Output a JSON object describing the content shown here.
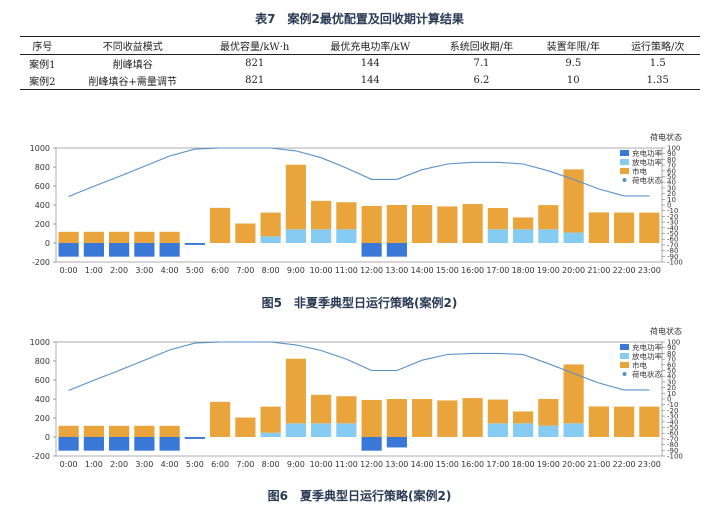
{
  "table": {
    "title": "表7　案例2最优配置及回收期计算结果",
    "headers": [
      "序号",
      "不同收益模式",
      "最优容量/kW·h",
      "最优充电功率/kW",
      "系统回收期/年",
      "装置年限/年",
      "运行策略/次"
    ],
    "rows": [
      [
        "案例1",
        "削峰填谷",
        "821",
        "144",
        "7.1",
        "9.5",
        "1.5"
      ],
      [
        "案例2",
        "削峰填谷+需量调节",
        "821",
        "144",
        "6.2",
        "10",
        "1.35"
      ]
    ]
  },
  "colors": {
    "charge": "#3a78d8",
    "discharge": "#86ccf2",
    "grid": "#eaa43c",
    "soc": "#5a90c8"
  },
  "chart_data": [
    {
      "type": "bar",
      "caption": "图5　非夏季典型日运行策略(案例2)",
      "categories": [
        "0:00",
        "1:00",
        "2:00",
        "3:00",
        "4:00",
        "5:00",
        "6:00",
        "7:00",
        "8:00",
        "9:00",
        "10:00",
        "11:00",
        "12:00",
        "13:00",
        "14:00",
        "15:00",
        "16:00",
        "17:00",
        "18:00",
        "19:00",
        "20:00",
        "21:00",
        "22:00",
        "23:00"
      ],
      "ylim": [
        -200,
        1000
      ],
      "yticks": [
        "-200",
        "0",
        "200",
        "400",
        "600",
        "800",
        "1000"
      ],
      "y2label": "荷电状态",
      "y2lim": [
        -100,
        100
      ],
      "y2ticks": [
        "-100",
        "-90",
        "-80",
        "-70",
        "-60",
        "-50",
        "-40",
        "-30",
        "-20",
        "-10",
        "0",
        "10",
        "20",
        "30",
        "40",
        "50",
        "60",
        "70",
        "80",
        "90",
        "100"
      ],
      "series": [
        {
          "name": "充电功率",
          "kind": "bar",
          "color": "#3a78d8",
          "values": [
            -144,
            -144,
            -144,
            -144,
            -144,
            -20,
            0,
            0,
            0,
            0,
            0,
            0,
            -144,
            -144,
            0,
            0,
            0,
            0,
            0,
            0,
            0,
            0,
            0,
            0
          ]
        },
        {
          "name": "放电功率",
          "kind": "bar",
          "color": "#86ccf2",
          "values": [
            0,
            0,
            0,
            0,
            0,
            0,
            0,
            0,
            70,
            144,
            144,
            144,
            0,
            0,
            0,
            0,
            0,
            144,
            144,
            144,
            110,
            0,
            0,
            0
          ]
        },
        {
          "name": "市电",
          "kind": "bar",
          "color": "#eaa43c",
          "values": [
            118,
            118,
            118,
            118,
            118,
            0,
            370,
            205,
            250,
            680,
            300,
            285,
            390,
            400,
            400,
            385,
            410,
            225,
            125,
            255,
            665,
            322,
            320,
            320
          ]
        },
        {
          "name": "荷电状态",
          "kind": "line",
          "color": "#5a90c8",
          "values": [
            15,
            33,
            50,
            68,
            86,
            98,
            100,
            100,
            100,
            95,
            83,
            65,
            45,
            45,
            62,
            72,
            75,
            75,
            72,
            60,
            45,
            28,
            16,
            16
          ]
        }
      ]
    },
    {
      "type": "bar",
      "caption": "图6　夏季典型日运行策略(案例2)",
      "categories": [
        "0:00",
        "1:00",
        "2:00",
        "3:00",
        "4:00",
        "5:00",
        "6:00",
        "7:00",
        "8:00",
        "9:00",
        "10:00",
        "11:00",
        "12:00",
        "13:00",
        "14:00",
        "15:00",
        "16:00",
        "17:00",
        "18:00",
        "19:00",
        "20:00",
        "21:00",
        "22:00",
        "23:00"
      ],
      "ylim": [
        -200,
        1000
      ],
      "yticks": [
        "-200",
        "0",
        "200",
        "400",
        "600",
        "800",
        "1000"
      ],
      "y2label": "荷电状态",
      "y2lim": [
        -100,
        100
      ],
      "y2ticks": [
        "-100",
        "-90",
        "-80",
        "-70",
        "-60",
        "-50",
        "-40",
        "-30",
        "-20",
        "-10",
        "0",
        "10",
        "20",
        "30",
        "40",
        "50",
        "60",
        "70",
        "80",
        "90",
        "100"
      ],
      "series": [
        {
          "name": "充电功率",
          "kind": "bar",
          "color": "#3a78d8",
          "values": [
            -144,
            -144,
            -144,
            -144,
            -144,
            -20,
            0,
            0,
            0,
            0,
            0,
            0,
            -144,
            -110,
            0,
            0,
            0,
            0,
            0,
            0,
            0,
            0,
            0,
            0
          ]
        },
        {
          "name": "放电功率",
          "kind": "bar",
          "color": "#86ccf2",
          "values": [
            0,
            0,
            0,
            0,
            0,
            0,
            0,
            0,
            45,
            144,
            144,
            144,
            0,
            0,
            0,
            0,
            0,
            144,
            144,
            120,
            144,
            0,
            0,
            0
          ]
        },
        {
          "name": "市电",
          "kind": "bar",
          "color": "#eaa43c",
          "values": [
            118,
            118,
            118,
            118,
            118,
            0,
            370,
            205,
            275,
            680,
            300,
            285,
            390,
            400,
            400,
            385,
            410,
            250,
            125,
            280,
            620,
            322,
            320,
            320
          ]
        },
        {
          "name": "荷电状态",
          "kind": "line",
          "color": "#5a90c8",
          "values": [
            15,
            33,
            50,
            68,
            86,
            98,
            100,
            100,
            100,
            95,
            85,
            70,
            50,
            50,
            68,
            78,
            80,
            80,
            78,
            62,
            45,
            28,
            16,
            16
          ]
        }
      ]
    }
  ]
}
